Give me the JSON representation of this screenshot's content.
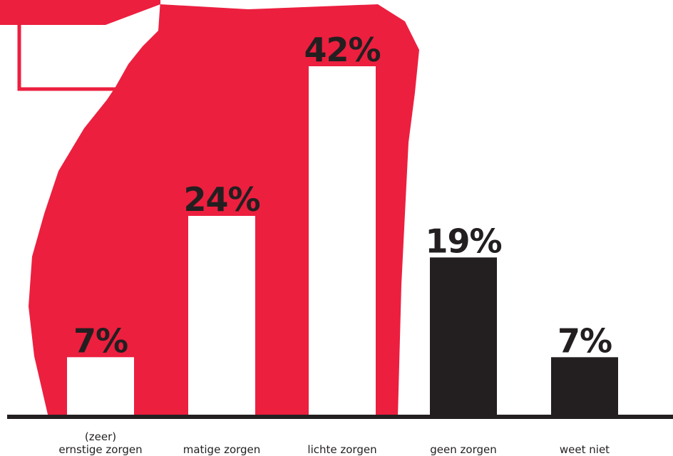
{
  "colors": {
    "accent": "#ec1f3f",
    "dark": "#231f20",
    "background": "#ffffff",
    "bar_light": "#ffffff",
    "bar_dark": "#231f20"
  },
  "chart_data": {
    "type": "bar",
    "title": "",
    "xlabel": "",
    "ylabel": "",
    "ylim": [
      0,
      50
    ],
    "grid": false,
    "categories": [
      [
        "(zeer)",
        "ernstige zorgen"
      ],
      [
        "matige zorgen"
      ],
      [
        "lichte zorgen"
      ],
      [
        "geen zorgen"
      ],
      [
        "weet niet"
      ]
    ],
    "values": [
      7,
      24,
      42,
      19,
      7
    ],
    "value_labels": [
      "7%",
      "24%",
      "42%",
      "19%",
      "7%"
    ],
    "bar_styles": [
      "light",
      "light",
      "light",
      "dark",
      "dark"
    ]
  }
}
